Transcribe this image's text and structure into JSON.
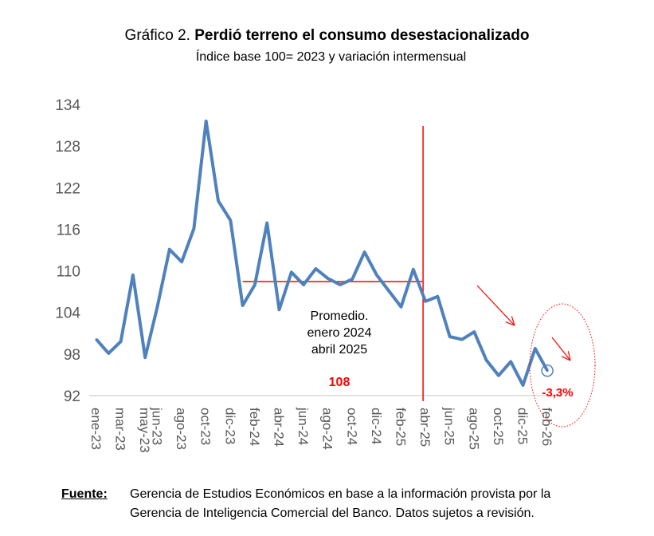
{
  "title_prefix": "Gráfico 2.",
  "title_bold": "Perdió terreno el consumo desestacionalizado",
  "subtitle": "Índice base 100= 2023 y variación intermensual",
  "chart_data": {
    "type": "line",
    "title": "Gráfico 2. Perdió terreno el consumo desestacionalizado",
    "subtitle": "Índice base 100= 2023 y variación intermensual",
    "xlabel": "",
    "ylabel": "",
    "ylim": [
      92,
      134
    ],
    "yticks": [
      92,
      98,
      104,
      110,
      116,
      122,
      128,
      134
    ],
    "grid": false,
    "x": [
      "ene-23",
      "feb-23",
      "mar-23",
      "abr-23",
      "may-23",
      "jun-23",
      "jul-23",
      "ago-23",
      "sep-23",
      "oct-23",
      "nov-23",
      "dic-23",
      "ene-24",
      "feb-24",
      "mar-24",
      "abr-24",
      "may-24",
      "jun-24",
      "jul-24",
      "ago-24",
      "sep-24",
      "oct-24",
      "nov-24",
      "dic-24",
      "ene-25",
      "feb-25",
      "mar-25",
      "abr-25",
      "may-25",
      "jun-25",
      "jul-25",
      "ago-25",
      "sep-25",
      "oct-25",
      "nov-25",
      "dic-25",
      "ene-26",
      "feb-26"
    ],
    "xtick_labels": [
      "ene-23",
      "mar-23",
      "may-23",
      "jun-23",
      "ago-23",
      "oct-23",
      "dic-23",
      "feb-24",
      "abr-24",
      "jun-24",
      "ago-24",
      "oct-24",
      "dic-24",
      "feb-25",
      "abr-25",
      "jun-25",
      "ago-25",
      "oct-25",
      "dic-25",
      "feb-26"
    ],
    "values": [
      100.1,
      98.1,
      99.8,
      109.4,
      97.5,
      104.8,
      113.1,
      111.3,
      116.1,
      131.6,
      120.1,
      117.3,
      105.0,
      108.0,
      116.9,
      104.4,
      109.8,
      108.0,
      110.3,
      108.9,
      108.0,
      108.8,
      112.7,
      109.4,
      107.1,
      104.8,
      110.2,
      105.6,
      106.3,
      100.5,
      100.1,
      101.2,
      97.1,
      94.9,
      96.9,
      93.5,
      98.8,
      95.6
    ],
    "line_color": "#4f81bd",
    "annotation_color": "#ff0000",
    "average": {
      "value": 108,
      "from": "ene-24",
      "to": "abr-25",
      "label_lines": [
        "Promedio.",
        "enero 2024",
        "abril 2025"
      ],
      "value_label": "108"
    },
    "vertical_marker": "abr-25",
    "last_change_label": "-3,3%"
  },
  "footer": {
    "label": "Fuente:",
    "line1": "Gerencia de Estudios Económicos en base a la información provista por la",
    "line2": "Gerencia de Inteligencia Comercial del Banco. Datos sujetos a revisión."
  }
}
